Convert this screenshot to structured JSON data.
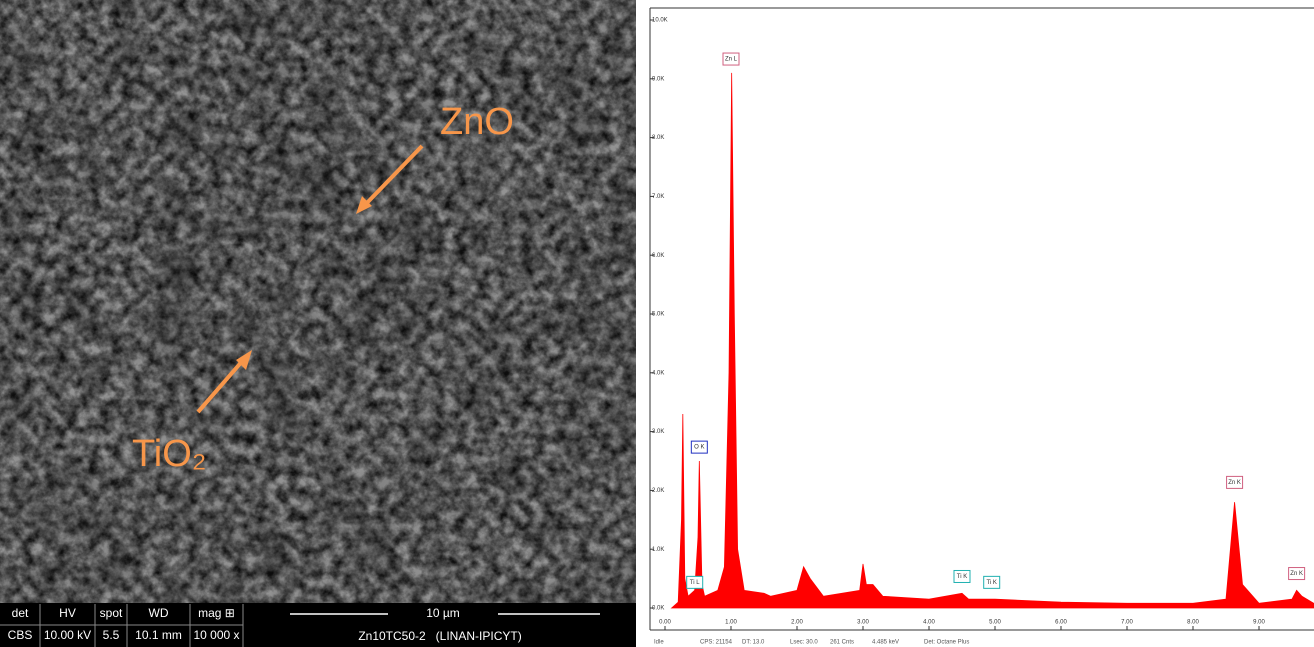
{
  "sem_image": {
    "annotations": [
      "ZnO",
      "TiO₂"
    ],
    "info_bar": {
      "headers": [
        "det",
        "HV",
        "spot",
        "WD",
        "mag ⊞"
      ],
      "values": [
        "CBS",
        "10.00 kV",
        "5.5",
        "10.1 mm",
        "10 000 x"
      ],
      "scale_bar": "10 µm",
      "sample": "Zn10TC50-2   (LINAN-IPICYT)"
    }
  },
  "chart_data": {
    "type": "area",
    "color": "#ff0000",
    "x": [
      0.1,
      0.2,
      0.25,
      0.27,
      0.3,
      0.35,
      0.45,
      0.5,
      0.52,
      0.56,
      0.6,
      0.8,
      0.9,
      0.97,
      1.01,
      1.05,
      1.1,
      1.2,
      1.5,
      1.6,
      2.0,
      2.1,
      2.2,
      2.4,
      2.95,
      3.0,
      3.05,
      3.15,
      3.3,
      4.0,
      4.5,
      4.6,
      5.0,
      6.0,
      7.0,
      8.0,
      8.5,
      8.63,
      8.75,
      9.0,
      9.5,
      9.57,
      9.65,
      9.83
    ],
    "series": [
      {
        "values": [
          0,
          100,
          1500,
          3300,
          500,
          200,
          300,
          1200,
          2500,
          400,
          200,
          300,
          700,
          4000,
          9100,
          5000,
          1000,
          300,
          250,
          200,
          300,
          700,
          500,
          200,
          300,
          750,
          400,
          400,
          200,
          150,
          250,
          150,
          150,
          100,
          80,
          80,
          150,
          1800,
          400,
          80,
          150,
          300,
          200,
          80
        ]
      }
    ],
    "xlim": [
      0,
      9.83
    ],
    "ylim": [
      0,
      10000
    ],
    "xticks": [
      {
        "value": 0,
        "label": "0.00"
      },
      {
        "value": 1,
        "label": "1.00"
      },
      {
        "value": 2,
        "label": "2.00"
      },
      {
        "value": 3,
        "label": "3.00"
      },
      {
        "value": 4,
        "label": "4.00"
      },
      {
        "value": 5,
        "label": "5.00"
      },
      {
        "value": 6,
        "label": "6.00"
      },
      {
        "value": 7,
        "label": "7.00"
      },
      {
        "value": 8,
        "label": "8.00"
      },
      {
        "value": 9,
        "label": "9.00"
      }
    ],
    "yticks": [
      {
        "value": 0,
        "label": "0.0K"
      },
      {
        "value": 1000,
        "label": "1.0K"
      },
      {
        "value": 2000,
        "label": "2.0K"
      },
      {
        "value": 3000,
        "label": "3.0K"
      },
      {
        "value": 4000,
        "label": "4.0K"
      },
      {
        "value": 5000,
        "label": "5.0K"
      },
      {
        "value": 6000,
        "label": "6.0K"
      },
      {
        "value": 7000,
        "label": "7.0K"
      },
      {
        "value": 8000,
        "label": "8.0K"
      },
      {
        "value": 9000,
        "label": "9.0K"
      },
      {
        "value": 10000,
        "label": "10.0K"
      }
    ],
    "peak_labels": [
      {
        "text": "Zn L",
        "x": 1.0,
        "y": 9200,
        "color": "#d06080"
      },
      {
        "text": "O K",
        "x": 0.52,
        "y": 2600,
        "color": "#2030c0"
      },
      {
        "text": "Ti L",
        "x": 0.45,
        "y": 300,
        "color": "#20b0b0"
      },
      {
        "text": "Ti K",
        "x": 4.5,
        "y": 400,
        "color": "#20b0b0"
      },
      {
        "text": "Ti K",
        "x": 4.95,
        "y": 300,
        "color": "#20b0b0"
      },
      {
        "text": "Zn K",
        "x": 8.63,
        "y": 2000,
        "color": "#d06080"
      },
      {
        "text": "Zn K",
        "x": 9.57,
        "y": 450,
        "color": "#d06080"
      }
    ]
  },
  "status_bar": [
    "Idle",
    "CPS: 21154",
    "DT: 13.0",
    "Lsec: 30.0",
    "261 Cnts",
    "4.485 keV",
    "Det: Octane Plus"
  ]
}
